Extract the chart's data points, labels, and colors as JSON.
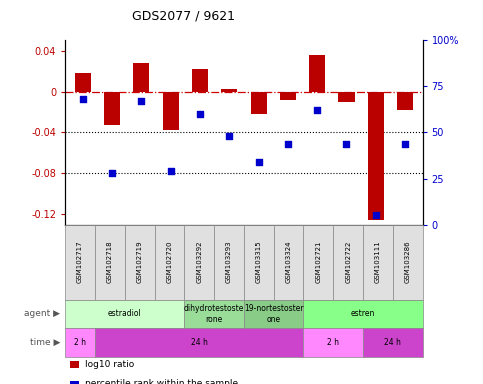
{
  "title": "GDS2077 / 9621",
  "samples": [
    "GSM102717",
    "GSM102718",
    "GSM102719",
    "GSM102720",
    "GSM103292",
    "GSM103293",
    "GSM103315",
    "GSM103324",
    "GSM102721",
    "GSM102722",
    "GSM103111",
    "GSM103286"
  ],
  "log10_ratio": [
    0.018,
    -0.033,
    0.028,
    -0.038,
    0.022,
    0.002,
    -0.022,
    -0.008,
    0.036,
    -0.01,
    -0.125,
    -0.018
  ],
  "percentile": [
    68,
    28,
    67,
    29,
    60,
    48,
    34,
    44,
    62,
    44,
    5,
    44
  ],
  "bar_color": "#bb0000",
  "dot_color": "#0000cc",
  "ref_line_color": "#cc0000",
  "grid_color": "#000000",
  "bg_color": "#ffffff",
  "ylim_left": [
    -0.13,
    0.05
  ],
  "ylim_right": [
    0,
    100
  ],
  "yticks_left": [
    -0.12,
    -0.08,
    -0.04,
    0.0,
    0.04
  ],
  "yticks_right": [
    0,
    25,
    50,
    75,
    100
  ],
  "agent_groups": [
    {
      "label": "estradiol",
      "start": 0,
      "end": 4,
      "color": "#ccffcc"
    },
    {
      "label": "dihydrotestoste\nrone",
      "start": 4,
      "end": 6,
      "color": "#99dd99"
    },
    {
      "label": "19-nortestoster\none",
      "start": 6,
      "end": 8,
      "color": "#88cc88"
    },
    {
      "label": "estren",
      "start": 8,
      "end": 12,
      "color": "#88ff88"
    }
  ],
  "time_groups": [
    {
      "label": "2 h",
      "start": 0,
      "end": 1,
      "color": "#ff88ff"
    },
    {
      "label": "24 h",
      "start": 1,
      "end": 8,
      "color": "#cc44cc"
    },
    {
      "label": "2 h",
      "start": 8,
      "end": 10,
      "color": "#ff88ff"
    },
    {
      "label": "24 h",
      "start": 10,
      "end": 12,
      "color": "#cc44cc"
    }
  ],
  "legend_items": [
    {
      "color": "#bb0000",
      "label": "log10 ratio"
    },
    {
      "color": "#0000cc",
      "label": "percentile rank within the sample"
    }
  ],
  "bar_width": 0.55,
  "agent_label": "agent",
  "time_label": "time"
}
